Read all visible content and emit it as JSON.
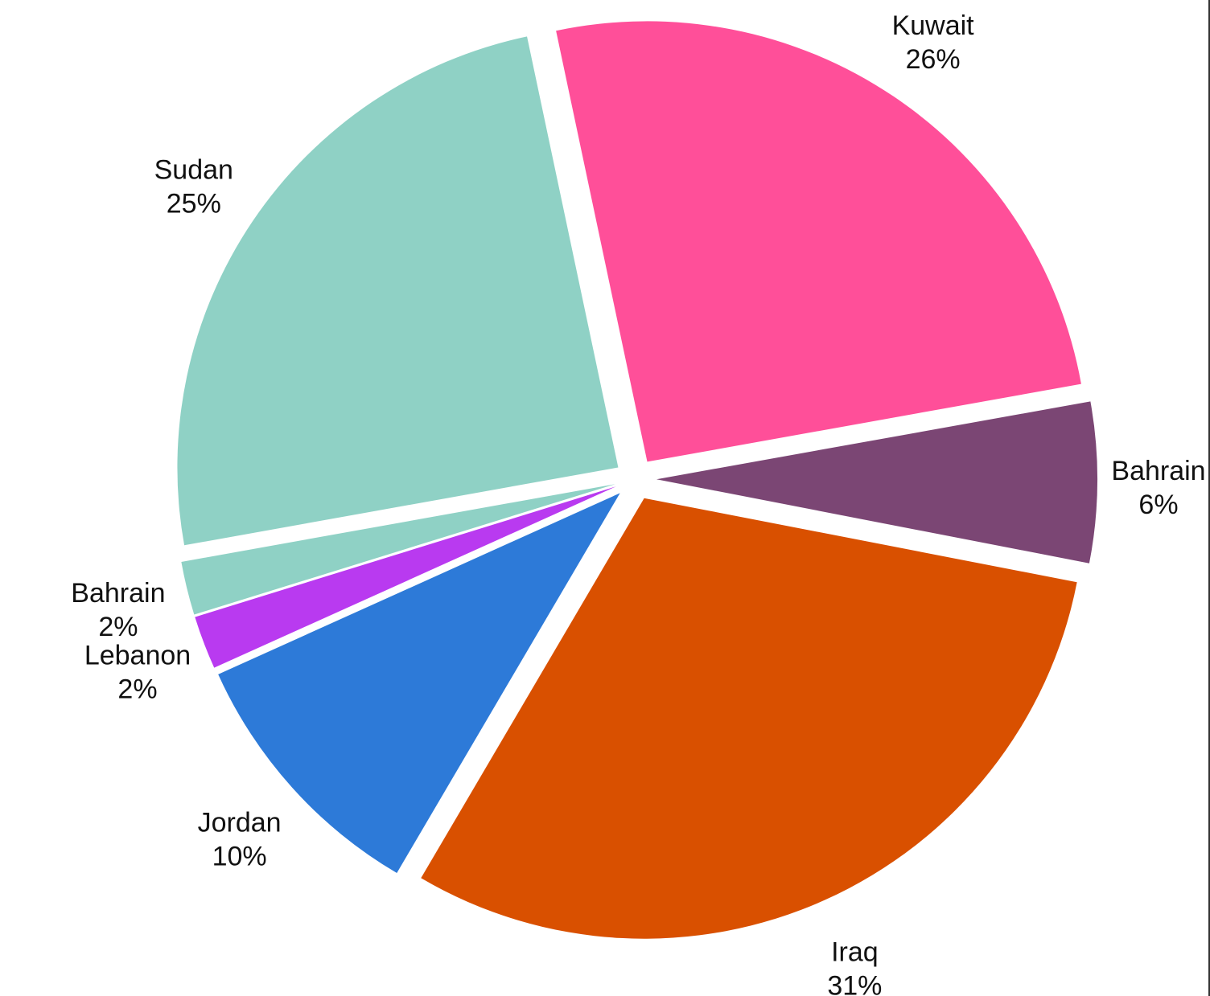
{
  "chart_data": {
    "type": "pie",
    "title": "",
    "start_angle_deg": -11,
    "direction": "counterclockwise",
    "slices": [
      {
        "label": "Bahrain",
        "value": 6,
        "display": "6%",
        "color": "#7b4674"
      },
      {
        "label": "Kuwait",
        "value": 26,
        "display": "26%",
        "color": "#ff4f99"
      },
      {
        "label": "Sudan",
        "value": 25,
        "display": "25%",
        "color": "#8fd1c5"
      },
      {
        "label": "Bahrain",
        "value": 2,
        "display": "2%",
        "color": "#8fd1c5"
      },
      {
        "label": "Lebanon",
        "value": 2,
        "display": "2%",
        "color": "#b93af0"
      },
      {
        "label": "Jordan",
        "value": 10,
        "display": "10%",
        "color": "#2d7ad8"
      },
      {
        "label": "Iraq",
        "value": 31,
        "display": "31%",
        "color": "#d95000"
      }
    ]
  }
}
